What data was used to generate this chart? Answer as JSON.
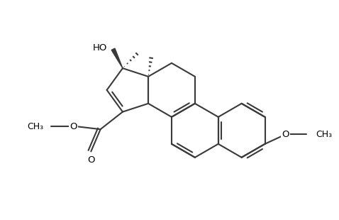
{
  "bg_color": "#ffffff",
  "bond_color": "#3a3a3a",
  "bond_lw": 1.5,
  "text_color": "#000000",
  "xlim": [
    0,
    10
  ],
  "ylim": [
    0,
    6.5
  ]
}
